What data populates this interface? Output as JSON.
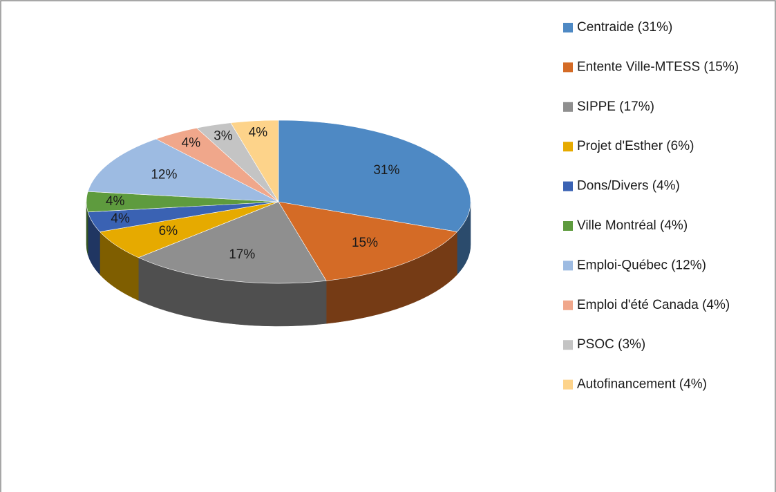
{
  "chart_data": {
    "type": "pie",
    "categories": [
      "Centraide (31%)",
      "Entente Ville-MTESS (15%)",
      "SIPPE (17%)",
      "Projet d'Esther (6%)",
      "Dons/Divers (4%)",
      "Ville Montréal (4%)",
      "Emploi-Québec (12%)",
      "Emploi d'été Canada (4%)",
      "PSOC (3%)",
      "Autofinancement (4%)"
    ],
    "values": [
      31,
      15,
      17,
      6,
      4,
      4,
      12,
      4,
      3,
      4
    ],
    "value_labels": [
      "31%",
      "15%",
      "17%",
      "6%",
      "4%",
      "4%",
      "12%",
      "4%",
      "3%",
      "4%"
    ],
    "colors": [
      "#4e89c4",
      "#d46b26",
      "#8f8f8f",
      "#e6aa00",
      "#3a62b3",
      "#5e9b3e",
      "#9dbbe2",
      "#f0a78b",
      "#c4c4c4",
      "#fdd38a"
    ],
    "legend": "right"
  }
}
